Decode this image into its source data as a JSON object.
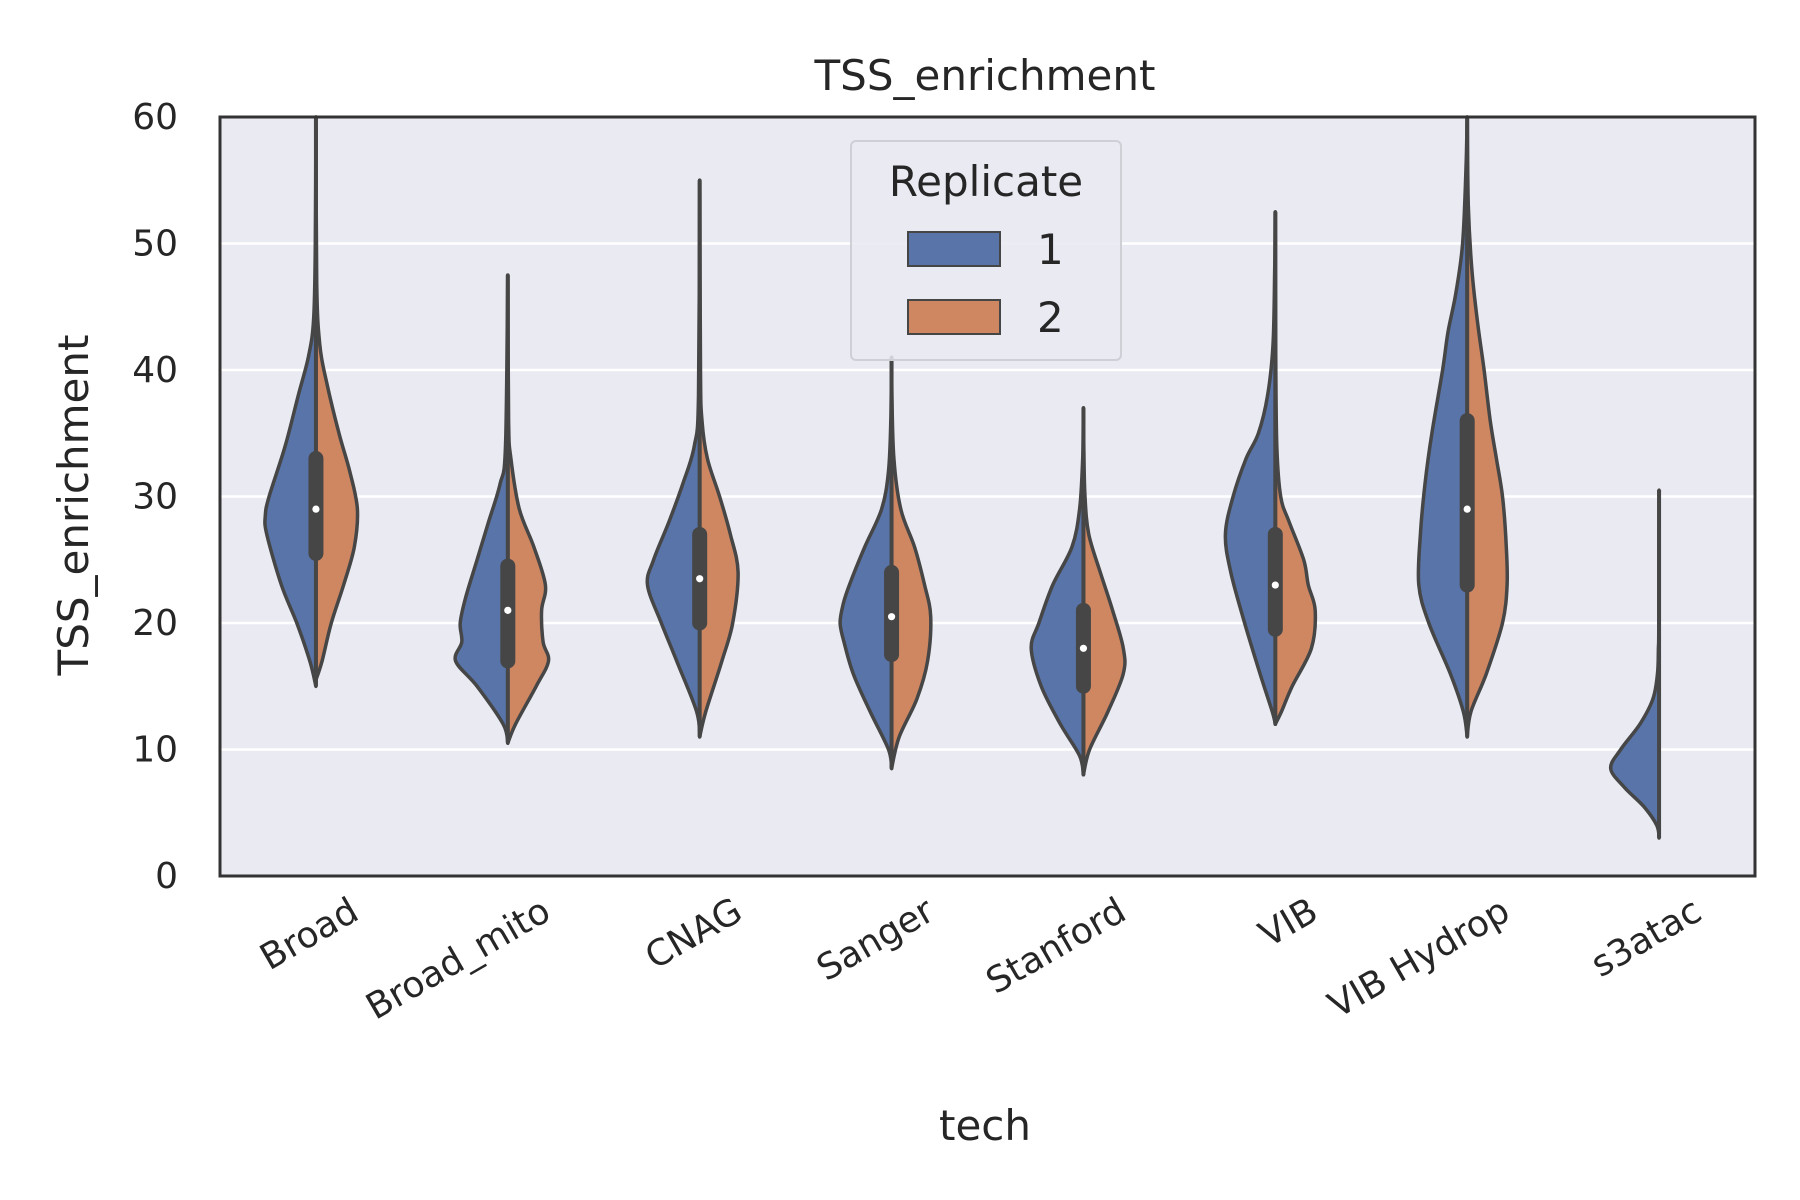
{
  "chart_data": {
    "type": "violin",
    "title": "TSS_enrichment",
    "xlabel": "tech",
    "ylabel": "TSS_enrichment",
    "ylim": [
      0,
      60
    ],
    "yticks": [
      0,
      10,
      20,
      30,
      40,
      50,
      60
    ],
    "grid": true,
    "split": true,
    "legend": {
      "title": "Replicate",
      "position": "top-center",
      "entries": [
        "1",
        "2"
      ]
    },
    "colors": {
      "1": "#5874a8",
      "2": "#cf8762",
      "background": "#e9eaf2",
      "outline": "#464646"
    },
    "categories": [
      "Broad",
      "Broad_mito",
      "CNAG",
      "Sanger",
      "Stanford",
      "VIB",
      "VIB Hydrop",
      "s3atac"
    ],
    "series": [
      {
        "name": "1",
        "profiles": [
          [
            [
              15,
              0
            ],
            [
              17,
              0.08
            ],
            [
              20,
              0.25
            ],
            [
              23,
              0.45
            ],
            [
              27,
              0.64
            ],
            [
              28.5,
              0.66
            ],
            [
              30,
              0.61
            ],
            [
              34,
              0.4
            ],
            [
              38,
              0.23
            ],
            [
              41,
              0.1
            ],
            [
              44,
              0.03
            ],
            [
              50,
              0.008
            ],
            [
              60,
              0.001
            ]
          ],
          [
            [
              10.5,
              0
            ],
            [
              12,
              0.06
            ],
            [
              15,
              0.4
            ],
            [
              17,
              0.68
            ],
            [
              18.5,
              0.6
            ],
            [
              20,
              0.62
            ],
            [
              22,
              0.55
            ],
            [
              25,
              0.4
            ],
            [
              28,
              0.25
            ],
            [
              31,
              0.1
            ],
            [
              34,
              0.03
            ],
            [
              47.5,
              0.001
            ]
          ],
          [
            [
              11,
              0
            ],
            [
              13,
              0.04
            ],
            [
              17,
              0.3
            ],
            [
              20,
              0.5
            ],
            [
              23,
              0.68
            ],
            [
              25,
              0.6
            ],
            [
              28,
              0.4
            ],
            [
              31,
              0.22
            ],
            [
              34,
              0.07
            ],
            [
              38,
              0.015
            ],
            [
              55,
              0.001
            ]
          ],
          [
            [
              8.5,
              0
            ],
            [
              10,
              0.04
            ],
            [
              13,
              0.28
            ],
            [
              16,
              0.5
            ],
            [
              18.5,
              0.62
            ],
            [
              20,
              0.67
            ],
            [
              21.5,
              0.63
            ],
            [
              23,
              0.55
            ],
            [
              26,
              0.35
            ],
            [
              29,
              0.13
            ],
            [
              32,
              0.04
            ],
            [
              36,
              0.01
            ],
            [
              41,
              0.001
            ]
          ],
          [
            [
              8,
              0
            ],
            [
              9.5,
              0.05
            ],
            [
              12,
              0.3
            ],
            [
              15,
              0.55
            ],
            [
              18,
              0.68
            ],
            [
              20,
              0.58
            ],
            [
              23,
              0.4
            ],
            [
              26,
              0.15
            ],
            [
              29,
              0.05
            ],
            [
              33,
              0.01
            ],
            [
              37,
              0.001
            ]
          ],
          [
            [
              12,
              0
            ],
            [
              13,
              0.04
            ],
            [
              16,
              0.2
            ],
            [
              20,
              0.4
            ],
            [
              24,
              0.58
            ],
            [
              27,
              0.65
            ],
            [
              30,
              0.55
            ],
            [
              33,
              0.38
            ],
            [
              35,
              0.22
            ],
            [
              38,
              0.1
            ],
            [
              42,
              0.03
            ],
            [
              48,
              0.008
            ],
            [
              52.5,
              0.001
            ]
          ],
          [
            [
              11,
              0
            ],
            [
              13,
              0.05
            ],
            [
              16,
              0.22
            ],
            [
              20,
              0.5
            ],
            [
              23,
              0.63
            ],
            [
              27,
              0.61
            ],
            [
              31,
              0.55
            ],
            [
              35,
              0.46
            ],
            [
              40,
              0.32
            ],
            [
              43,
              0.25
            ],
            [
              46,
              0.15
            ],
            [
              50,
              0.06
            ],
            [
              56,
              0.015
            ],
            [
              60,
              0.001
            ]
          ],
          [
            [
              3,
              0
            ],
            [
              4,
              0.03
            ],
            [
              5.5,
              0.2
            ],
            [
              7,
              0.45
            ],
            [
              8.5,
              0.63
            ],
            [
              10,
              0.5
            ],
            [
              12,
              0.25
            ],
            [
              14,
              0.08
            ],
            [
              16,
              0.02
            ],
            [
              18,
              0.008
            ],
            [
              20,
              0.004
            ],
            [
              30.5,
              0.001
            ]
          ]
        ],
        "box": [
          [
            25.5,
            29,
            33
          ],
          [
            17,
            21,
            24.5
          ],
          [
            20,
            23.5,
            27
          ],
          [
            17.5,
            20.5,
            24
          ],
          [
            15,
            18,
            21
          ],
          [
            19.5,
            23,
            27
          ],
          [
            23,
            29,
            36
          ],
          [
            null,
            null,
            null
          ]
        ]
      },
      {
        "name": "2",
        "profiles": [
          [
            [
              15.5,
              0
            ],
            [
              17,
              0.08
            ],
            [
              20,
              0.2
            ],
            [
              23,
              0.36
            ],
            [
              26,
              0.5
            ],
            [
              29,
              0.54
            ],
            [
              32,
              0.44
            ],
            [
              35,
              0.3
            ],
            [
              39,
              0.14
            ],
            [
              42,
              0.05
            ],
            [
              47,
              0.01
            ],
            [
              60,
              0.001
            ]
          ],
          [
            [
              10.5,
              0
            ],
            [
              12,
              0.1
            ],
            [
              15,
              0.37
            ],
            [
              17,
              0.53
            ],
            [
              18.5,
              0.46
            ],
            [
              21,
              0.44
            ],
            [
              23,
              0.49
            ],
            [
              26,
              0.34
            ],
            [
              29,
              0.15
            ],
            [
              33,
              0.04
            ],
            [
              36,
              0.01
            ],
            [
              47.5,
              0.001
            ]
          ],
          [
            [
              11,
              0
            ],
            [
              13,
              0.08
            ],
            [
              17,
              0.29
            ],
            [
              20,
              0.43
            ],
            [
              24,
              0.5
            ],
            [
              27,
              0.4
            ],
            [
              30,
              0.26
            ],
            [
              33,
              0.1
            ],
            [
              36,
              0.03
            ],
            [
              40,
              0.01
            ],
            [
              55,
              0.001
            ]
          ],
          [
            [
              8.5,
              0
            ],
            [
              11,
              0.1
            ],
            [
              14,
              0.33
            ],
            [
              17,
              0.47
            ],
            [
              20.5,
              0.51
            ],
            [
              23,
              0.43
            ],
            [
              26,
              0.3
            ],
            [
              29,
              0.12
            ],
            [
              33,
              0.03
            ],
            [
              38,
              0.005
            ],
            [
              41,
              0.001
            ]
          ],
          [
            [
              8,
              0
            ],
            [
              10,
              0.08
            ],
            [
              13,
              0.32
            ],
            [
              16,
              0.52
            ],
            [
              18,
              0.52
            ],
            [
              21,
              0.38
            ],
            [
              24,
              0.22
            ],
            [
              27,
              0.07
            ],
            [
              30,
              0.02
            ],
            [
              34,
              0.005
            ],
            [
              37,
              0.001
            ]
          ],
          [
            [
              12,
              0
            ],
            [
              13,
              0.08
            ],
            [
              15,
              0.22
            ],
            [
              18,
              0.47
            ],
            [
              21,
              0.52
            ],
            [
              23,
              0.43
            ],
            [
              25,
              0.37
            ],
            [
              28,
              0.18
            ],
            [
              30,
              0.07
            ],
            [
              34,
              0.02
            ],
            [
              42,
              0.005
            ],
            [
              52.5,
              0.001
            ]
          ],
          [
            [
              11,
              0
            ],
            [
              13,
              0.05
            ],
            [
              16,
              0.25
            ],
            [
              20,
              0.46
            ],
            [
              23,
              0.52
            ],
            [
              26,
              0.51
            ],
            [
              30,
              0.46
            ],
            [
              33,
              0.38
            ],
            [
              36,
              0.3
            ],
            [
              40,
              0.22
            ],
            [
              44,
              0.13
            ],
            [
              48,
              0.06
            ],
            [
              53,
              0.015
            ],
            [
              60,
              0.001
            ]
          ],
          [
            [
              30.5,
              0
            ]
          ]
        ],
        "box": [
          [
            25.5,
            29,
            33
          ],
          [
            17,
            21,
            24.5
          ],
          [
            20,
            23.5,
            27
          ],
          [
            17.5,
            20.5,
            24
          ],
          [
            15,
            18,
            21
          ],
          [
            19.5,
            23,
            27
          ],
          [
            23,
            29,
            36
          ],
          [
            null,
            null,
            null
          ]
        ]
      }
    ]
  }
}
